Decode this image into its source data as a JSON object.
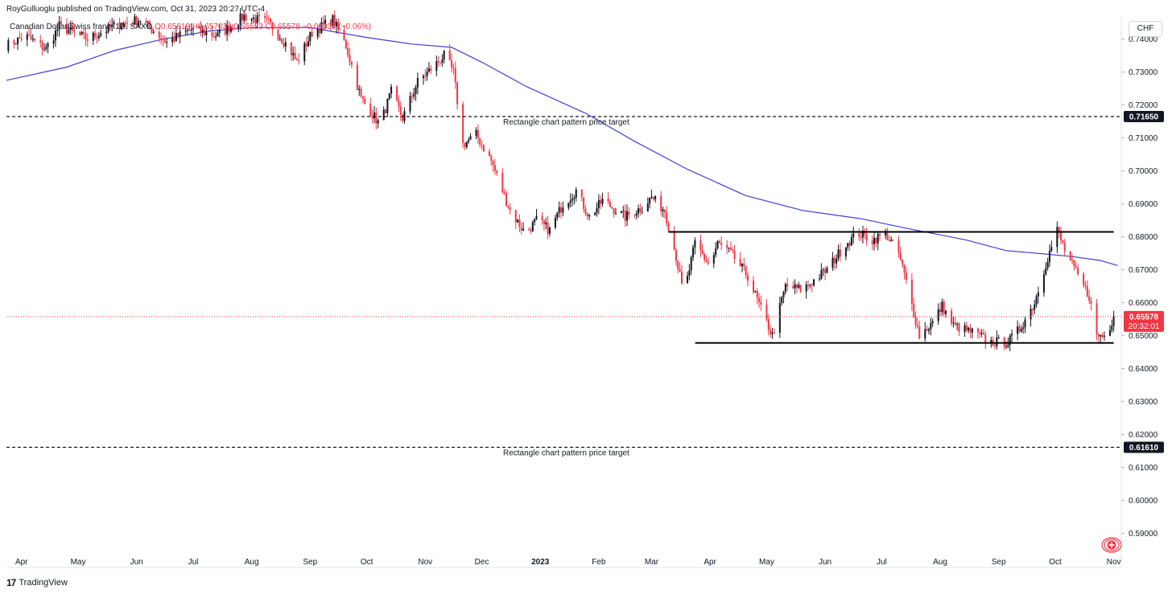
{
  "header": {
    "publisher_line": "RoyGulluoglu published on TradingView.com, Oct 31, 2023 20:27 UTC-4",
    "symbol_line": "Canadian Dollar/Swiss franc, 1D, SAXO",
    "ohlc": "O0.65619 H0.65703 L0.65523 C0.65578 −0.00037 (−0.06%)",
    "currency": "CHF"
  },
  "footer": {
    "brand": "TradingView",
    "brand_icon": "tradingview-logo-icon"
  },
  "colors": {
    "up": "#131722",
    "down": "#f23645",
    "ma": "#3f3fd6",
    "last_price": "#f23645"
  },
  "chart_data": {
    "type": "candlestick",
    "ylim": [
      0.585,
      0.747
    ],
    "y_ticks": [
      0.74,
      0.73,
      0.72,
      0.71,
      0.7,
      0.69,
      0.68,
      0.67,
      0.66,
      0.65,
      0.64,
      0.63,
      0.62,
      0.61,
      0.6,
      0.59
    ],
    "y_tick_labels": [
      "0.74000",
      "0.73000",
      "0.72000",
      "0.71000",
      "0.70000",
      "0.69000",
      "0.68000",
      "0.67000",
      "0.66000",
      "0.65000",
      "0.64000",
      "0.63000",
      "0.62000",
      "0.61000",
      "0.60000",
      "0.59000"
    ],
    "x_range": [
      "2022-03-24",
      "2023-11-05"
    ],
    "x_ticks": [
      {
        "label": "Apr",
        "date": "2022-04-01"
      },
      {
        "label": "May",
        "date": "2022-05-01"
      },
      {
        "label": "Jun",
        "date": "2022-06-01"
      },
      {
        "label": "Jul",
        "date": "2022-07-01"
      },
      {
        "label": "Aug",
        "date": "2022-08-01"
      },
      {
        "label": "Sep",
        "date": "2022-09-01"
      },
      {
        "label": "Oct",
        "date": "2022-10-01"
      },
      {
        "label": "Nov",
        "date": "2022-11-01"
      },
      {
        "label": "Dec",
        "date": "2022-12-01"
      },
      {
        "label": "2023",
        "date": "2023-01-01"
      },
      {
        "label": "Feb",
        "date": "2023-02-01"
      },
      {
        "label": "Mar",
        "date": "2023-03-01"
      },
      {
        "label": "Apr",
        "date": "2023-04-01"
      },
      {
        "label": "May",
        "date": "2023-05-01"
      },
      {
        "label": "Jun",
        "date": "2023-06-01"
      },
      {
        "label": "Jul",
        "date": "2023-07-01"
      },
      {
        "label": "Aug",
        "date": "2023-08-01"
      },
      {
        "label": "Sep",
        "date": "2023-09-01"
      },
      {
        "label": "Oct",
        "date": "2023-10-01"
      },
      {
        "label": "Nov",
        "date": "2023-11-01"
      }
    ],
    "price_path": [
      [
        "2022-03-24",
        0.738
      ],
      [
        "2022-04-03",
        0.741
      ],
      [
        "2022-04-14",
        0.737
      ],
      [
        "2022-04-21",
        0.744
      ],
      [
        "2022-05-06",
        0.74
      ],
      [
        "2022-05-20",
        0.744
      ],
      [
        "2022-06-03",
        0.746
      ],
      [
        "2022-06-17",
        0.739
      ],
      [
        "2022-06-30",
        0.743
      ],
      [
        "2022-07-14",
        0.741
      ],
      [
        "2022-07-28",
        0.747
      ],
      [
        "2022-08-10",
        0.745
      ],
      [
        "2022-08-20",
        0.738
      ],
      [
        "2022-08-25",
        0.733
      ],
      [
        "2022-09-02",
        0.742
      ],
      [
        "2022-09-13",
        0.746
      ],
      [
        "2022-09-20",
        0.738
      ],
      [
        "2022-09-28",
        0.722
      ],
      [
        "2022-10-08",
        0.714
      ],
      [
        "2022-10-14",
        0.724
      ],
      [
        "2022-10-20",
        0.716
      ],
      [
        "2022-10-28",
        0.727
      ],
      [
        "2022-11-06",
        0.732
      ],
      [
        "2022-11-11",
        0.735
      ],
      [
        "2022-11-16",
        0.73
      ],
      [
        "2022-11-21",
        0.708
      ],
      [
        "2022-11-28",
        0.711
      ],
      [
        "2022-12-06",
        0.703
      ],
      [
        "2022-12-16",
        0.688
      ],
      [
        "2022-12-24",
        0.681
      ],
      [
        "2022-12-30",
        0.685
      ],
      [
        "2023-01-06",
        0.682
      ],
      [
        "2023-01-13",
        0.69
      ],
      [
        "2023-01-20",
        0.694
      ],
      [
        "2023-01-27",
        0.686
      ],
      [
        "2023-02-03",
        0.691
      ],
      [
        "2023-02-15",
        0.686
      ],
      [
        "2023-02-24",
        0.689
      ],
      [
        "2023-03-01",
        0.692
      ],
      [
        "2023-03-08",
        0.688
      ],
      [
        "2023-03-14",
        0.674
      ],
      [
        "2023-03-18",
        0.662
      ],
      [
        "2023-03-24",
        0.678
      ],
      [
        "2023-04-01",
        0.671
      ],
      [
        "2023-04-05",
        0.678
      ],
      [
        "2023-04-12",
        0.675
      ],
      [
        "2023-04-21",
        0.668
      ],
      [
        "2023-04-28",
        0.658
      ],
      [
        "2023-05-04",
        0.65
      ],
      [
        "2023-05-11",
        0.665
      ],
      [
        "2023-05-20",
        0.664
      ],
      [
        "2023-06-02",
        0.67
      ],
      [
        "2023-06-12",
        0.678
      ],
      [
        "2023-06-19",
        0.681
      ],
      [
        "2023-06-26",
        0.679
      ],
      [
        "2023-07-03",
        0.681
      ],
      [
        "2023-07-10",
        0.675
      ],
      [
        "2023-07-15",
        0.664
      ],
      [
        "2023-07-21",
        0.65
      ],
      [
        "2023-07-28",
        0.654
      ],
      [
        "2023-08-02",
        0.659
      ],
      [
        "2023-08-08",
        0.653
      ],
      [
        "2023-08-18",
        0.651
      ],
      [
        "2023-08-28",
        0.648
      ],
      [
        "2023-09-06",
        0.648
      ],
      [
        "2023-09-12",
        0.652
      ],
      [
        "2023-09-20",
        0.66
      ],
      [
        "2023-09-26",
        0.672
      ],
      [
        "2023-10-02",
        0.682
      ],
      [
        "2023-10-06",
        0.676
      ],
      [
        "2023-10-12",
        0.669
      ],
      [
        "2023-10-19",
        0.662
      ],
      [
        "2023-10-23",
        0.65
      ],
      [
        "2023-10-28",
        0.65
      ],
      [
        "2023-11-01",
        0.6558
      ]
    ],
    "moving_average": [
      [
        "2022-03-24",
        0.7275
      ],
      [
        "2022-04-25",
        0.7315
      ],
      [
        "2022-05-20",
        0.7365
      ],
      [
        "2022-06-15",
        0.74
      ],
      [
        "2022-07-10",
        0.7425
      ],
      [
        "2022-08-01",
        0.7435
      ],
      [
        "2022-09-01",
        0.7435
      ],
      [
        "2022-10-01",
        0.7405
      ],
      [
        "2022-10-25",
        0.7385
      ],
      [
        "2022-11-15",
        0.7375
      ],
      [
        "2022-12-01",
        0.733
      ],
      [
        "2022-12-25",
        0.7255
      ],
      [
        "2023-01-25",
        0.7175
      ],
      [
        "2023-02-20",
        0.709
      ],
      [
        "2023-03-20",
        0.7005
      ],
      [
        "2023-04-20",
        0.6925
      ],
      [
        "2023-05-20",
        0.688
      ],
      [
        "2023-06-20",
        0.6855
      ],
      [
        "2023-07-15",
        0.6825
      ],
      [
        "2023-08-15",
        0.679
      ],
      [
        "2023-09-05",
        0.6758
      ],
      [
        "2023-09-25",
        0.6748
      ],
      [
        "2023-10-10",
        0.674
      ],
      [
        "2023-10-25",
        0.6728
      ],
      [
        "2023-11-03",
        0.6713
      ]
    ],
    "rectangle": {
      "top": 0.6815,
      "bottom": 0.6478,
      "start": "2023-03-10",
      "end": "2023-11-01"
    },
    "targets": [
      {
        "price": 0.7165,
        "label": "0.71650",
        "annotation": "Rectangle chart pattern price target"
      },
      {
        "price": 0.6161,
        "label": "0.61610",
        "annotation": "Rectangle chart pattern price target"
      }
    ],
    "last_price": {
      "value": 0.65578,
      "label": "0.65578",
      "countdown": "20:32:01"
    }
  }
}
